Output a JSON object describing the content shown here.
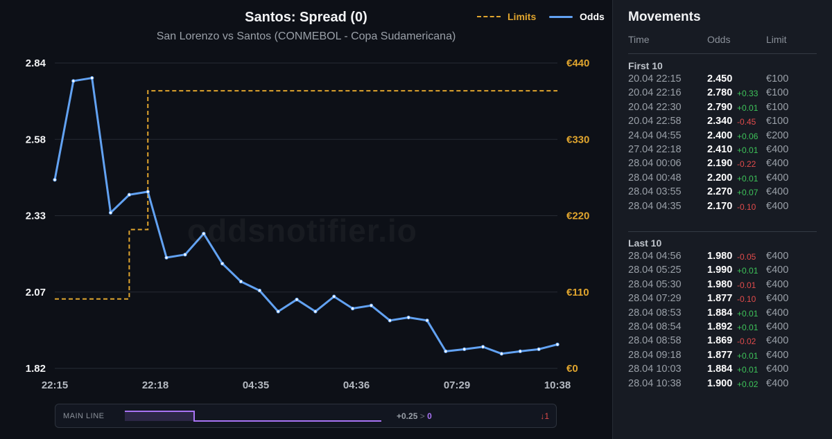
{
  "chart_data": {
    "type": "line",
    "title": "Santos: Spread (0)",
    "subtitle": "San Lorenzo vs Santos (CONMEBOL - Copa Sudamericana)",
    "legend": [
      "Limits",
      "Odds"
    ],
    "legend_position": "top-right",
    "x_tick_labels": [
      "22:15",
      "22:18",
      "04:35",
      "04:36",
      "07:29",
      "10:38"
    ],
    "y_left": {
      "ticks": [
        "1.82",
        "2.07",
        "2.33",
        "2.58",
        "2.84"
      ],
      "range": [
        1.82,
        2.84
      ]
    },
    "y_right": {
      "ticks": [
        "€0",
        "€110",
        "€220",
        "€330",
        "€440"
      ],
      "range": [
        0,
        440
      ]
    },
    "grid": true,
    "series": [
      {
        "name": "Odds",
        "color": "#62a2f2",
        "values": [
          2.45,
          2.78,
          2.79,
          2.34,
          2.4,
          2.41,
          2.19,
          2.2,
          2.27,
          2.17,
          2.11,
          2.08,
          2.01,
          2.05,
          2.01,
          2.06,
          2.02,
          2.03,
          1.98,
          1.99,
          1.98,
          1.877,
          1.884,
          1.892,
          1.869,
          1.877,
          1.884,
          1.9
        ]
      },
      {
        "name": "Limits",
        "color": "#e0a52e",
        "step": true,
        "values": [
          100,
          100,
          100,
          100,
          200,
          400,
          400,
          400,
          400,
          400,
          400,
          400,
          400,
          400,
          400,
          400,
          400,
          400,
          400,
          400,
          400,
          400,
          400,
          400,
          400,
          400,
          400,
          400
        ]
      }
    ]
  },
  "watermark": "oddsnotifier.io",
  "main_line": {
    "label": "MAIN LINE",
    "from": "+0.25",
    "arrow": ">",
    "to": "0",
    "moves": "↓1",
    "color": "#a974f5"
  },
  "movements": {
    "title": "Movements",
    "headers": {
      "time": "Time",
      "odds": "Odds",
      "limit": "Limit"
    },
    "first": {
      "title": "First 10",
      "rows": [
        {
          "time": "20.04 22:15",
          "odds": "2.450",
          "delta": "",
          "dir": "",
          "limit": "€100"
        },
        {
          "time": "20.04 22:16",
          "odds": "2.780",
          "delta": "+0.33",
          "dir": "up",
          "limit": "€100"
        },
        {
          "time": "20.04 22:30",
          "odds": "2.790",
          "delta": "+0.01",
          "dir": "up",
          "limit": "€100"
        },
        {
          "time": "20.04 22:58",
          "odds": "2.340",
          "delta": "-0.45",
          "dir": "down",
          "limit": "€100"
        },
        {
          "time": "24.04 04:55",
          "odds": "2.400",
          "delta": "+0.06",
          "dir": "up",
          "limit": "€200"
        },
        {
          "time": "27.04 22:18",
          "odds": "2.410",
          "delta": "+0.01",
          "dir": "up",
          "limit": "€400"
        },
        {
          "time": "28.04 00:06",
          "odds": "2.190",
          "delta": "-0.22",
          "dir": "down",
          "limit": "€400"
        },
        {
          "time": "28.04 00:48",
          "odds": "2.200",
          "delta": "+0.01",
          "dir": "up",
          "limit": "€400"
        },
        {
          "time": "28.04 03:55",
          "odds": "2.270",
          "delta": "+0.07",
          "dir": "up",
          "limit": "€400"
        },
        {
          "time": "28.04 04:35",
          "odds": "2.170",
          "delta": "-0.10",
          "dir": "down",
          "limit": "€400"
        }
      ]
    },
    "last": {
      "title": "Last 10",
      "rows": [
        {
          "time": "28.04 04:56",
          "odds": "1.980",
          "delta": "-0.05",
          "dir": "down",
          "limit": "€400"
        },
        {
          "time": "28.04 05:25",
          "odds": "1.990",
          "delta": "+0.01",
          "dir": "up",
          "limit": "€400"
        },
        {
          "time": "28.04 05:30",
          "odds": "1.980",
          "delta": "-0.01",
          "dir": "down",
          "limit": "€400"
        },
        {
          "time": "28.04 07:29",
          "odds": "1.877",
          "delta": "-0.10",
          "dir": "down",
          "limit": "€400"
        },
        {
          "time": "28.04 08:53",
          "odds": "1.884",
          "delta": "+0.01",
          "dir": "up",
          "limit": "€400"
        },
        {
          "time": "28.04 08:54",
          "odds": "1.892",
          "delta": "+0.01",
          "dir": "up",
          "limit": "€400"
        },
        {
          "time": "28.04 08:58",
          "odds": "1.869",
          "delta": "-0.02",
          "dir": "down",
          "limit": "€400"
        },
        {
          "time": "28.04 09:18",
          "odds": "1.877",
          "delta": "+0.01",
          "dir": "up",
          "limit": "€400"
        },
        {
          "time": "28.04 10:03",
          "odds": "1.884",
          "delta": "+0.01",
          "dir": "up",
          "limit": "€400"
        },
        {
          "time": "28.04 10:38",
          "odds": "1.900",
          "delta": "+0.02",
          "dir": "up",
          "limit": "€400"
        }
      ]
    }
  }
}
